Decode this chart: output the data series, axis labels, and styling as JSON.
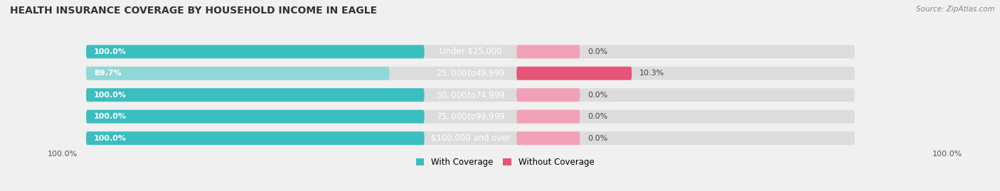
{
  "title": "HEALTH INSURANCE COVERAGE BY HOUSEHOLD INCOME IN EAGLE",
  "source": "Source: ZipAtlas.com",
  "categories": [
    "Under $25,000",
    "$25,000 to $49,999",
    "$50,000 to $74,999",
    "$75,000 to $99,999",
    "$100,000 and over"
  ],
  "with_coverage": [
    100.0,
    89.7,
    100.0,
    100.0,
    100.0
  ],
  "without_coverage": [
    0.0,
    10.3,
    0.0,
    0.0,
    0.0
  ],
  "color_with_normal": "#3bbec0",
  "color_with_light": "#90d8d8",
  "color_without_strong": "#e8537a",
  "color_without_light": "#f2a0b8",
  "color_bg_bar": "#dcdcdc",
  "color_bg": "#f0f0f0",
  "figsize": [
    14.06,
    2.69
  ],
  "dpi": 100
}
